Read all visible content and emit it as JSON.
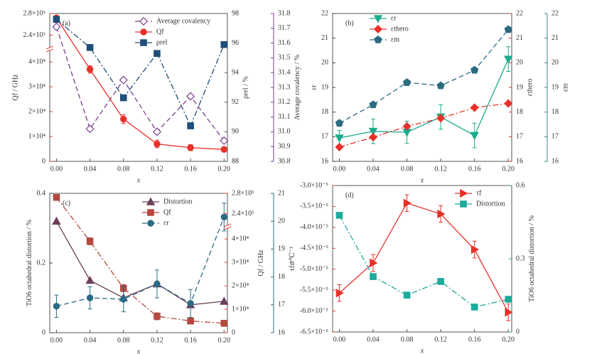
{
  "chart_data": [
    {
      "type": "line",
      "annotation": "(a)",
      "xlabel": "x",
      "x": [
        0,
        0.04,
        0.08,
        0.12,
        0.16,
        0.2
      ],
      "xlim": [
        -0.008,
        0.204
      ],
      "xticks": [
        {
          "value": 0,
          "label": "0.00"
        },
        0.04,
        0.08,
        0.12,
        0.16,
        {
          "value": 0.2,
          "label": "0.20"
        }
      ],
      "ylabel": "Qf / GHz",
      "ycolor": "#e8302a",
      "ylim": [
        0,
        280000
      ],
      "ybreak": [
        44000,
        220000
      ],
      "yticks": [
        0,
        {
          "value": 10000,
          "label": "1×10⁴"
        },
        {
          "value": 20000,
          "label": "2×10⁴"
        },
        {
          "value": 30000,
          "label": "3×10⁴"
        },
        {
          "value": 40000,
          "label": "4×10⁴"
        },
        {
          "value": 240000,
          "label": "2.4×10⁵"
        },
        {
          "value": 280000,
          "label": "2.8×10⁵"
        }
      ],
      "y2label": "ρrel / %",
      "y2color": "#2e5f7a",
      "y2lim": [
        88,
        98
      ],
      "y2ticks": [
        88,
        90,
        92,
        94,
        96,
        98
      ],
      "y3label": "Average covalency / %",
      "y3color": "#7b3f8c",
      "y3lim": [
        30.8,
        31.8
      ],
      "y3ticks": [
        30.8,
        30.9,
        {
          "value": 31,
          "label": "31.0"
        },
        31.1,
        31.2,
        31.3,
        31.4,
        31.5,
        31.6,
        31.7,
        31.8
      ],
      "series": [
        {
          "name": "Average covalency",
          "color": "#7b3f8c",
          "marker": "diamond",
          "filled": false,
          "dash": "dashed",
          "axis": "y3",
          "values": [
            31.71,
            31.02,
            31.35,
            31.0,
            31.24,
            30.94
          ]
        },
        {
          "name": "Qf",
          "color": "#e8302a",
          "marker": "circle",
          "dash": "solid",
          "axis": "y",
          "values": [
            272000,
            37000,
            17000,
            7000,
            5500,
            4800
          ],
          "errors": [
            null,
            1500,
            1800,
            1500,
            1200,
            1000
          ]
        },
        {
          "name": "ρrel",
          "color": "#1f4e79",
          "marker": "square",
          "dash": "dashdot",
          "axis": "y2",
          "values": [
            97.6,
            95.7,
            92.3,
            95.3,
            90.4,
            95.9
          ]
        }
      ]
    },
    {
      "type": "line",
      "annotation": "(b)",
      "xlabel": "x",
      "x": [
        0,
        0.04,
        0.08,
        0.12,
        0.16,
        0.2
      ],
      "xlim": [
        -0.008,
        0.204
      ],
      "xticks": [
        {
          "value": 0,
          "label": "0.00"
        },
        0.04,
        0.08,
        0.12,
        0.16,
        {
          "value": 0.2,
          "label": "0.20"
        }
      ],
      "ylabel": "εr",
      "ycolor": "#333333",
      "ylim": [
        16,
        22
      ],
      "yticks": [
        16,
        17,
        18,
        19,
        20,
        21,
        22
      ],
      "y2label": "εthero",
      "y2color": "#e8302a",
      "y2lim": [
        16,
        22
      ],
      "y2ticks": [
        16,
        17,
        18,
        19,
        20,
        21,
        22
      ],
      "y3label": "εm",
      "y3color": "#3f7f8f",
      "y3lim": [
        16,
        22
      ],
      "y3ticks": [
        16,
        17,
        18,
        19,
        20,
        21,
        22
      ],
      "series": [
        {
          "name": "εr",
          "color": "#1aab8a",
          "marker": "triangle-down",
          "dash": "solid",
          "axis": "y",
          "values": [
            16.95,
            17.22,
            17.18,
            17.8,
            17.05,
            20.15
          ],
          "errors": [
            0.3,
            0.5,
            0.45,
            0.5,
            0.5,
            0.5
          ]
        },
        {
          "name": "εthero",
          "color": "#e8302a",
          "marker": "diamond",
          "dash": "dashdot",
          "axis": "y2",
          "values": [
            16.58,
            16.98,
            17.42,
            17.75,
            18.18,
            18.35
          ]
        },
        {
          "name": "εm",
          "color": "#2a6b80",
          "marker": "pentagon",
          "dash": "dashed",
          "axis": "y3",
          "values": [
            17.55,
            18.3,
            19.2,
            19.07,
            19.7,
            21.35
          ]
        }
      ]
    },
    {
      "type": "line",
      "annotation": "(c)",
      "xlabel": "x",
      "x": [
        0,
        0.04,
        0.08,
        0.12,
        0.16,
        0.2
      ],
      "xlim": [
        -0.008,
        0.204
      ],
      "xticks": [
        {
          "value": 0,
          "label": "0.00"
        },
        0.04,
        0.08,
        0.12,
        0.16,
        {
          "value": 0.2,
          "label": "0.20"
        }
      ],
      "ylabel": "TiO6 octahedral distortion / %",
      "ycolor": "#333333",
      "ylim": [
        0,
        0.4
      ],
      "yticks": [
        0,
        0.2,
        0.4
      ],
      "y2label": "Qf / GHz",
      "y2color": "#e8302a",
      "y2lim": [
        0,
        280000
      ],
      "y2break": [
        44000,
        220000
      ],
      "y2ticks": [
        0,
        {
          "value": 10000,
          "label": "1×10⁴"
        },
        {
          "value": 20000,
          "label": "2×10⁴"
        },
        {
          "value": 30000,
          "label": "3×10⁴"
        },
        {
          "value": 40000,
          "label": "4×10⁴"
        },
        {
          "value": 240000,
          "label": "2.4×10⁵"
        },
        {
          "value": 280000,
          "label": "2.8×10⁵"
        }
      ],
      "y3label": "εr",
      "y3color": "#2a6b85",
      "y3lim": [
        16,
        21
      ],
      "y3ticks": [
        16,
        17,
        18,
        19,
        20,
        21
      ],
      "series": [
        {
          "name": "Distortion",
          "color": "#6b3f5a",
          "marker": "triangle",
          "dash": "solid",
          "axis": "y",
          "values": [
            0.32,
            0.15,
            0.1,
            0.14,
            0.08,
            0.09
          ]
        },
        {
          "name": "Qf",
          "color": "#b5483f",
          "marker": "square",
          "dash": "dashdot",
          "axis": "y2",
          "values": [
            272000,
            39000,
            19000,
            7000,
            5000,
            4000
          ],
          "errors": [
            null,
            1500,
            1500,
            1500,
            1000,
            1000
          ]
        },
        {
          "name": "εr",
          "color": "#2a6b85",
          "marker": "circle",
          "dash": "dashed",
          "axis": "y3",
          "values": [
            16.95,
            17.25,
            17.2,
            17.75,
            17.05,
            20.15
          ],
          "errors": [
            0.4,
            0.4,
            0.45,
            0.5,
            0.5,
            0.5
          ]
        }
      ]
    },
    {
      "type": "line",
      "annotation": "(d)",
      "xlabel": "x",
      "x": [
        0,
        0.04,
        0.08,
        0.12,
        0.16,
        0.2
      ],
      "xlim": [
        -0.008,
        0.204
      ],
      "xticks": [
        {
          "value": 0,
          "label": "0.00"
        },
        0.04,
        0.08,
        0.12,
        0.16,
        {
          "value": 0.2,
          "label": "0.20"
        }
      ],
      "ylabel": "τf / ℃⁻¹",
      "ycolor": "#e8302a",
      "ylim": [
        -6.5e-05,
        -3e-05
      ],
      "yticks": [
        {
          "value": -6.5e-05,
          "label": "-6.5×10⁻⁵"
        },
        {
          "value": -6e-05,
          "label": "-6.0×10⁻⁵"
        },
        {
          "value": -5.5e-05,
          "label": "-5.5×10⁻⁵"
        },
        {
          "value": -5e-05,
          "label": "-5.0×10⁻⁵"
        },
        {
          "value": -4.5e-05,
          "label": "-4.5×10⁻⁵"
        },
        {
          "value": -4e-05,
          "label": "-4.0×10⁻⁵"
        },
        {
          "value": -3.5e-05,
          "label": "-3.5×10⁻⁵"
        },
        {
          "value": -3e-05,
          "label": "-3.0×10⁻⁵"
        }
      ],
      "y2label": "TiO6 octahedral distortion / %",
      "y2color": "#1aab9a",
      "y2lim": [
        0,
        0.6
      ],
      "y2ticks": [
        0,
        0.3,
        0.6
      ],
      "series": [
        {
          "name": "τf",
          "color": "#e8302a",
          "marker": "triangle-right",
          "dash": "solid",
          "axis": "y",
          "values": [
            -5.57e-05,
            -4.85e-05,
            -3.42e-05,
            -3.68e-05,
            -4.53e-05,
            -6.03e-05
          ],
          "errors": [
            2e-06,
            2e-06,
            2e-06,
            2e-06,
            2e-06,
            2e-06
          ]
        },
        {
          "name": "Distortion",
          "color": "#1aab9a",
          "marker": "square",
          "dash": "dashdot",
          "axis": "y2",
          "values": [
            0.478,
            0.227,
            0.151,
            0.207,
            0.102,
            0.134
          ]
        }
      ]
    }
  ]
}
